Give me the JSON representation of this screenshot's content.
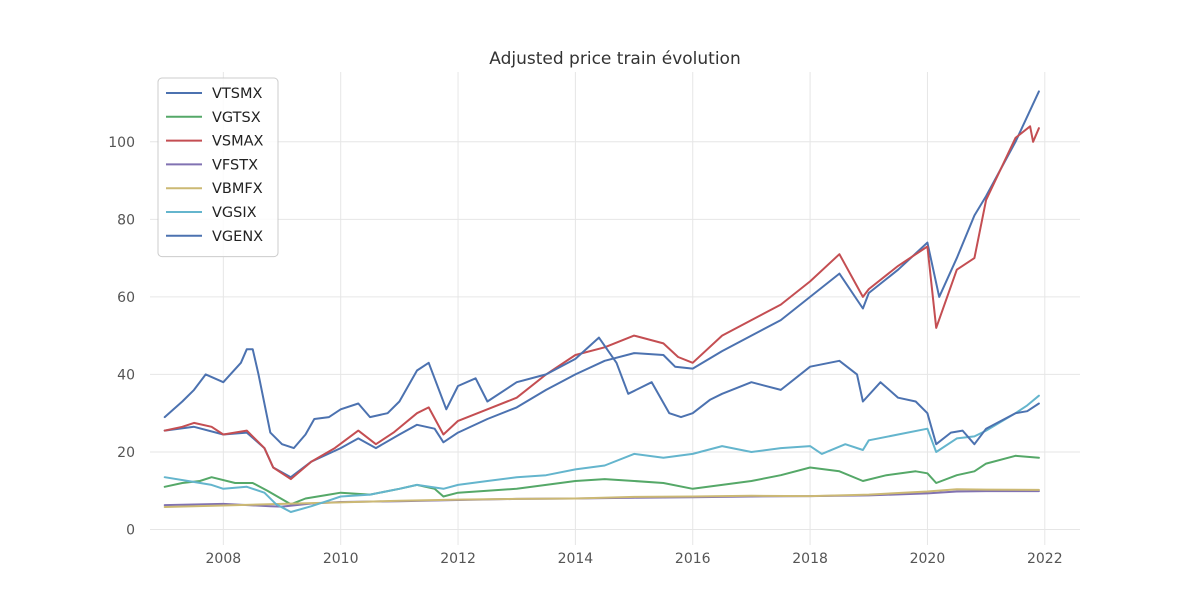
{
  "chart_data": {
    "type": "line",
    "title": "Adjusted price train évolution",
    "xlabel": "",
    "ylabel": "",
    "xlim": [
      2006.75,
      2022.6
    ],
    "ylim": [
      -4,
      118
    ],
    "x_ticks": [
      2008,
      2010,
      2012,
      2014,
      2016,
      2018,
      2020,
      2022
    ],
    "y_ticks": [
      0,
      20,
      40,
      60,
      80,
      100
    ],
    "grid": true,
    "legend_position": "top-left",
    "series": [
      {
        "name": "VTSMX",
        "color": "#4c72b0",
        "points": [
          [
            2007.0,
            25.5
          ],
          [
            2007.5,
            26.5
          ],
          [
            2008.0,
            24.5
          ],
          [
            2008.4,
            25.0
          ],
          [
            2008.7,
            21.0
          ],
          [
            2008.85,
            16.0
          ],
          [
            2009.15,
            13.5
          ],
          [
            2009.5,
            17.5
          ],
          [
            2010.0,
            21.0
          ],
          [
            2010.3,
            23.5
          ],
          [
            2010.6,
            21.0
          ],
          [
            2011.0,
            24.5
          ],
          [
            2011.3,
            27.0
          ],
          [
            2011.6,
            26.0
          ],
          [
            2011.75,
            22.5
          ],
          [
            2012.0,
            25.0
          ],
          [
            2012.5,
            28.5
          ],
          [
            2013.0,
            31.5
          ],
          [
            2013.5,
            36.0
          ],
          [
            2014.0,
            40.0
          ],
          [
            2014.5,
            43.5
          ],
          [
            2015.0,
            45.5
          ],
          [
            2015.5,
            45.0
          ],
          [
            2015.7,
            42.0
          ],
          [
            2016.0,
            41.5
          ],
          [
            2016.5,
            46.0
          ],
          [
            2017.0,
            50.0
          ],
          [
            2017.5,
            54.0
          ],
          [
            2018.0,
            60.0
          ],
          [
            2018.5,
            66.0
          ],
          [
            2018.9,
            57.0
          ],
          [
            2019.0,
            61.0
          ],
          [
            2019.5,
            67.0
          ],
          [
            2020.0,
            74.0
          ],
          [
            2020.2,
            60.0
          ],
          [
            2020.5,
            70.0
          ],
          [
            2020.8,
            81.0
          ],
          [
            2021.0,
            86.0
          ],
          [
            2021.5,
            100.0
          ],
          [
            2021.9,
            113.0
          ]
        ]
      },
      {
        "name": "VGTSX",
        "color": "#55a868",
        "points": [
          [
            2007.0,
            11.0
          ],
          [
            2007.3,
            12.0
          ],
          [
            2007.6,
            12.5
          ],
          [
            2007.8,
            13.5
          ],
          [
            2008.2,
            12.0
          ],
          [
            2008.5,
            12.0
          ],
          [
            2008.75,
            10.0
          ],
          [
            2009.15,
            6.5
          ],
          [
            2009.4,
            8.0
          ],
          [
            2009.8,
            9.0
          ],
          [
            2010.0,
            9.5
          ],
          [
            2010.5,
            9.0
          ],
          [
            2011.0,
            10.5
          ],
          [
            2011.3,
            11.5
          ],
          [
            2011.6,
            10.5
          ],
          [
            2011.75,
            8.5
          ],
          [
            2012.0,
            9.5
          ],
          [
            2012.5,
            10.0
          ],
          [
            2013.0,
            10.5
          ],
          [
            2013.5,
            11.5
          ],
          [
            2014.0,
            12.5
          ],
          [
            2014.5,
            13.0
          ],
          [
            2015.0,
            12.5
          ],
          [
            2015.5,
            12.0
          ],
          [
            2016.0,
            10.5
          ],
          [
            2016.5,
            11.5
          ],
          [
            2017.0,
            12.5
          ],
          [
            2017.5,
            14.0
          ],
          [
            2018.0,
            16.0
          ],
          [
            2018.5,
            15.0
          ],
          [
            2018.9,
            12.5
          ],
          [
            2019.3,
            14.0
          ],
          [
            2019.8,
            15.0
          ],
          [
            2020.0,
            14.5
          ],
          [
            2020.15,
            12.0
          ],
          [
            2020.5,
            14.0
          ],
          [
            2020.8,
            15.0
          ],
          [
            2021.0,
            17.0
          ],
          [
            2021.5,
            19.0
          ],
          [
            2021.9,
            18.5
          ]
        ]
      },
      {
        "name": "VSMAX",
        "color": "#c44e52",
        "points": [
          [
            2007.0,
            25.5
          ],
          [
            2007.3,
            26.5
          ],
          [
            2007.5,
            27.5
          ],
          [
            2007.8,
            26.5
          ],
          [
            2008.0,
            24.5
          ],
          [
            2008.4,
            25.5
          ],
          [
            2008.7,
            21.0
          ],
          [
            2008.85,
            16.0
          ],
          [
            2009.15,
            13.0
          ],
          [
            2009.5,
            17.5
          ],
          [
            2009.9,
            21.0
          ],
          [
            2010.3,
            25.5
          ],
          [
            2010.6,
            22.0
          ],
          [
            2010.9,
            25.0
          ],
          [
            2011.3,
            30.0
          ],
          [
            2011.5,
            31.5
          ],
          [
            2011.75,
            24.5
          ],
          [
            2012.0,
            28.0
          ],
          [
            2012.5,
            31.0
          ],
          [
            2013.0,
            34.0
          ],
          [
            2013.5,
            40.0
          ],
          [
            2014.0,
            45.0
          ],
          [
            2014.5,
            47.0
          ],
          [
            2015.0,
            50.0
          ],
          [
            2015.5,
            48.0
          ],
          [
            2015.75,
            44.5
          ],
          [
            2016.0,
            43.0
          ],
          [
            2016.5,
            50.0
          ],
          [
            2017.0,
            54.0
          ],
          [
            2017.5,
            58.0
          ],
          [
            2018.0,
            64.0
          ],
          [
            2018.5,
            71.0
          ],
          [
            2018.9,
            60.0
          ],
          [
            2019.0,
            62.0
          ],
          [
            2019.5,
            68.0
          ],
          [
            2020.0,
            73.0
          ],
          [
            2020.15,
            52.0
          ],
          [
            2020.5,
            67.0
          ],
          [
            2020.8,
            70.0
          ],
          [
            2021.0,
            85.0
          ],
          [
            2021.5,
            101.0
          ],
          [
            2021.75,
            104.0
          ],
          [
            2021.8,
            100.0
          ],
          [
            2021.9,
            103.5
          ]
        ]
      },
      {
        "name": "VFSTX",
        "color": "#8172b2",
        "points": [
          [
            2007.0,
            6.3
          ],
          [
            2008.0,
            6.6
          ],
          [
            2008.8,
            6.0
          ],
          [
            2009.0,
            5.9
          ],
          [
            2009.5,
            6.7
          ],
          [
            2010.0,
            7.1
          ],
          [
            2011.0,
            7.3
          ],
          [
            2012.0,
            7.6
          ],
          [
            2013.0,
            7.9
          ],
          [
            2014.0,
            8.0
          ],
          [
            2015.0,
            8.2
          ],
          [
            2016.0,
            8.3
          ],
          [
            2017.0,
            8.5
          ],
          [
            2018.0,
            8.6
          ],
          [
            2019.0,
            8.8
          ],
          [
            2020.0,
            9.3
          ],
          [
            2020.5,
            9.8
          ],
          [
            2021.0,
            9.9
          ],
          [
            2021.9,
            9.9
          ]
        ]
      },
      {
        "name": "VBMFX",
        "color": "#ccb974",
        "points": [
          [
            2007.0,
            5.8
          ],
          [
            2008.0,
            6.2
          ],
          [
            2009.0,
            6.6
          ],
          [
            2010.0,
            7.0
          ],
          [
            2011.0,
            7.4
          ],
          [
            2012.0,
            7.7
          ],
          [
            2013.0,
            7.9
          ],
          [
            2014.0,
            8.0
          ],
          [
            2015.0,
            8.4
          ],
          [
            2016.0,
            8.5
          ],
          [
            2017.0,
            8.7
          ],
          [
            2018.0,
            8.6
          ],
          [
            2019.0,
            9.0
          ],
          [
            2020.0,
            9.8
          ],
          [
            2020.5,
            10.4
          ],
          [
            2021.0,
            10.3
          ],
          [
            2021.9,
            10.2
          ]
        ]
      },
      {
        "name": "VGSIX",
        "color": "#64b5cd",
        "points": [
          [
            2007.0,
            13.5
          ],
          [
            2007.4,
            12.5
          ],
          [
            2007.8,
            11.5
          ],
          [
            2008.0,
            10.5
          ],
          [
            2008.4,
            11.0
          ],
          [
            2008.7,
            9.5
          ],
          [
            2008.9,
            6.5
          ],
          [
            2009.15,
            4.5
          ],
          [
            2009.5,
            6.0
          ],
          [
            2009.8,
            7.5
          ],
          [
            2010.0,
            8.5
          ],
          [
            2010.5,
            9.0
          ],
          [
            2011.0,
            10.5
          ],
          [
            2011.3,
            11.5
          ],
          [
            2011.75,
            10.5
          ],
          [
            2012.0,
            11.5
          ],
          [
            2012.5,
            12.5
          ],
          [
            2013.0,
            13.5
          ],
          [
            2013.5,
            14.0
          ],
          [
            2014.0,
            15.5
          ],
          [
            2014.5,
            16.5
          ],
          [
            2015.0,
            19.5
          ],
          [
            2015.5,
            18.5
          ],
          [
            2016.0,
            19.5
          ],
          [
            2016.5,
            21.5
          ],
          [
            2017.0,
            20.0
          ],
          [
            2017.5,
            21.0
          ],
          [
            2018.0,
            21.5
          ],
          [
            2018.2,
            19.5
          ],
          [
            2018.6,
            22.0
          ],
          [
            2018.9,
            20.5
          ],
          [
            2019.0,
            23.0
          ],
          [
            2019.5,
            24.5
          ],
          [
            2020.0,
            26.0
          ],
          [
            2020.15,
            20.0
          ],
          [
            2020.5,
            23.5
          ],
          [
            2020.8,
            24.0
          ],
          [
            2021.0,
            25.5
          ],
          [
            2021.5,
            30.0
          ],
          [
            2021.7,
            32.0
          ],
          [
            2021.9,
            34.5
          ]
        ]
      },
      {
        "name": "VGENX",
        "color": "#4c72b0",
        "points": [
          [
            2007.0,
            29.0
          ],
          [
            2007.3,
            33.0
          ],
          [
            2007.5,
            36.0
          ],
          [
            2007.7,
            40.0
          ],
          [
            2008.0,
            38.0
          ],
          [
            2008.3,
            43.0
          ],
          [
            2008.4,
            46.5
          ],
          [
            2008.5,
            46.5
          ],
          [
            2008.6,
            40.0
          ],
          [
            2008.8,
            25.0
          ],
          [
            2009.0,
            22.0
          ],
          [
            2009.2,
            21.0
          ],
          [
            2009.4,
            24.5
          ],
          [
            2009.55,
            28.5
          ],
          [
            2009.8,
            29.0
          ],
          [
            2010.0,
            31.0
          ],
          [
            2010.3,
            32.5
          ],
          [
            2010.5,
            29.0
          ],
          [
            2010.8,
            30.0
          ],
          [
            2011.0,
            33.0
          ],
          [
            2011.3,
            41.0
          ],
          [
            2011.5,
            43.0
          ],
          [
            2011.8,
            31.0
          ],
          [
            2012.0,
            37.0
          ],
          [
            2012.3,
            39.0
          ],
          [
            2012.5,
            33.0
          ],
          [
            2013.0,
            38.0
          ],
          [
            2013.5,
            40.0
          ],
          [
            2014.0,
            44.0
          ],
          [
            2014.4,
            49.5
          ],
          [
            2014.7,
            43.0
          ],
          [
            2014.9,
            35.0
          ],
          [
            2015.3,
            38.0
          ],
          [
            2015.6,
            30.0
          ],
          [
            2015.8,
            29.0
          ],
          [
            2016.0,
            30.0
          ],
          [
            2016.3,
            33.5
          ],
          [
            2016.5,
            35.0
          ],
          [
            2017.0,
            38.0
          ],
          [
            2017.5,
            36.0
          ],
          [
            2018.0,
            42.0
          ],
          [
            2018.5,
            43.5
          ],
          [
            2018.8,
            40.0
          ],
          [
            2018.9,
            33.0
          ],
          [
            2019.2,
            38.0
          ],
          [
            2019.5,
            34.0
          ],
          [
            2019.8,
            33.0
          ],
          [
            2020.0,
            30.0
          ],
          [
            2020.15,
            22.0
          ],
          [
            2020.4,
            25.0
          ],
          [
            2020.6,
            25.5
          ],
          [
            2020.8,
            22.0
          ],
          [
            2021.0,
            26.0
          ],
          [
            2021.5,
            30.0
          ],
          [
            2021.7,
            30.5
          ],
          [
            2021.9,
            32.5
          ]
        ]
      }
    ]
  }
}
